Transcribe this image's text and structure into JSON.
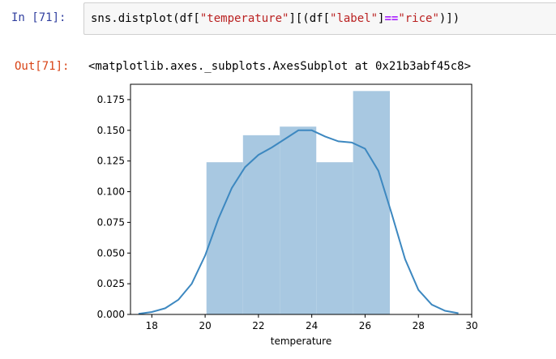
{
  "notebook": {
    "input_prompt": "In [71]:",
    "code": {
      "p1": "sns.distplot(df[",
      "s1": "\"temperature\"",
      "p2": "][(df[",
      "s2": "\"label\"",
      "p3": "]",
      "op": "==",
      "s3": "\"rice\"",
      "p4": ")])"
    },
    "output_prompt": "Out[71]:",
    "output_text": "<matplotlib.axes._subplots.AxesSubplot at 0x21b3abf45c8>"
  },
  "chart_data": {
    "type": "bar",
    "xlabel": "temperature",
    "ylabel": "",
    "xlim": [
      17.2,
      30.0
    ],
    "ylim": [
      0,
      0.1875
    ],
    "xticks": [
      18,
      20,
      22,
      24,
      26,
      28,
      30
    ],
    "yticks": [
      "0.000",
      "0.025",
      "0.050",
      "0.075",
      "0.100",
      "0.125",
      "0.150",
      "0.175"
    ],
    "bins": [
      {
        "x0": 20.05,
        "x1": 21.42,
        "value": 0.124
      },
      {
        "x0": 21.42,
        "x1": 22.8,
        "value": 0.146
      },
      {
        "x0": 22.8,
        "x1": 24.17,
        "value": 0.153
      },
      {
        "x0": 24.17,
        "x1": 25.55,
        "value": 0.124
      },
      {
        "x0": 25.55,
        "x1": 26.93,
        "value": 0.182
      }
    ],
    "kde": [
      [
        17.5,
        0.0005
      ],
      [
        18.0,
        0.002
      ],
      [
        18.5,
        0.005
      ],
      [
        19.0,
        0.012
      ],
      [
        19.5,
        0.025
      ],
      [
        20.0,
        0.048
      ],
      [
        20.5,
        0.078
      ],
      [
        21.0,
        0.103
      ],
      [
        21.5,
        0.12
      ],
      [
        22.0,
        0.13
      ],
      [
        22.5,
        0.136
      ],
      [
        23.0,
        0.143
      ],
      [
        23.5,
        0.15
      ],
      [
        24.0,
        0.15
      ],
      [
        24.5,
        0.145
      ],
      [
        25.0,
        0.141
      ],
      [
        25.5,
        0.14
      ],
      [
        26.0,
        0.135
      ],
      [
        26.5,
        0.117
      ],
      [
        27.0,
        0.082
      ],
      [
        27.5,
        0.045
      ],
      [
        28.0,
        0.02
      ],
      [
        28.5,
        0.008
      ],
      [
        29.0,
        0.003
      ],
      [
        29.5,
        0.001
      ]
    ],
    "colors": {
      "bar_fill": "#a8c8e1",
      "kde_line": "#3d88c0",
      "axis": "#000000"
    }
  }
}
